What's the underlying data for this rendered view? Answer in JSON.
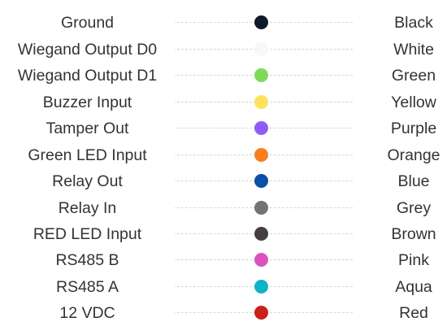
{
  "wires": [
    {
      "signal": "Ground",
      "color_name": "Black",
      "color": "#0d1a2b"
    },
    {
      "signal": "Wiegand Output D0",
      "color_name": "White",
      "color": "#f7f7f7"
    },
    {
      "signal": "Wiegand Output D1",
      "color_name": "Green",
      "color": "#7fd957"
    },
    {
      "signal": "Buzzer Input",
      "color_name": "Yellow",
      "color": "#fde35b"
    },
    {
      "signal": "Tamper Out",
      "color_name": "Purple",
      "color": "#8f5cf7"
    },
    {
      "signal": "Green LED Input",
      "color_name": "Orange",
      "color": "#f77f1f"
    },
    {
      "signal": "Relay Out",
      "color_name": "Blue",
      "color": "#0b4fa6"
    },
    {
      "signal": "Relay In",
      "color_name": "Grey",
      "color": "#737373"
    },
    {
      "signal": "RED LED Input",
      "color_name": "Brown",
      "color": "#463e3f"
    },
    {
      "signal": "RS485 B",
      "color_name": "Pink",
      "color": "#db52bf"
    },
    {
      "signal": "RS485 A",
      "color_name": "Aqua",
      "color": "#0fb3c8"
    },
    {
      "signal": "12 VDC",
      "color_name": "Red",
      "color": "#c9211a"
    }
  ]
}
